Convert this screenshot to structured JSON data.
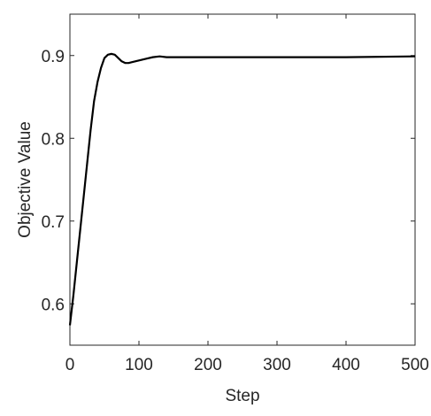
{
  "chart_data": {
    "type": "line",
    "xlabel": "Step",
    "ylabel": "Objective Value",
    "x": [
      0,
      5,
      10,
      15,
      20,
      25,
      30,
      35,
      40,
      45,
      50,
      55,
      60,
      65,
      70,
      75,
      80,
      85,
      90,
      100,
      110,
      120,
      130,
      140,
      150,
      200,
      300,
      400,
      500
    ],
    "series": [
      {
        "color": "#000000",
        "values": [
          0.574,
          0.61,
          0.65,
          0.69,
          0.73,
          0.77,
          0.81,
          0.845,
          0.868,
          0.885,
          0.897,
          0.901,
          0.902,
          0.901,
          0.897,
          0.893,
          0.891,
          0.891,
          0.892,
          0.894,
          0.896,
          0.898,
          0.899,
          0.898,
          0.898,
          0.898,
          0.898,
          0.898,
          0.899
        ]
      }
    ],
    "xlim": [
      0,
      500
    ],
    "xticks": [
      0,
      100,
      200,
      300,
      400,
      500
    ],
    "ylim": [
      0.55,
      0.95
    ],
    "yticks": [
      0.6,
      0.7,
      0.8,
      0.9
    ],
    "box": true
  }
}
